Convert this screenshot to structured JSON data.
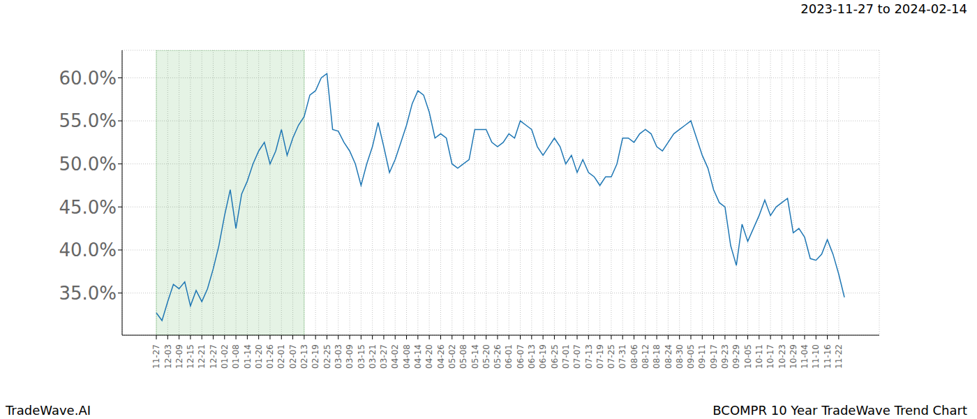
{
  "chart_data": {
    "type": "line",
    "title": "BCOMPR 10 Year TradeWave Trend Chart",
    "subtitle": "2023-11-27 to 2024-02-14",
    "source": "TradeWave.AI",
    "categories": [
      "11-27",
      null,
      "12-03",
      null,
      "12-09",
      null,
      "12-15",
      null,
      "12-21",
      null,
      "12-27",
      null,
      "01-02",
      null,
      "01-08",
      null,
      "01-14",
      null,
      "01-20",
      null,
      "01-26",
      null,
      "02-01",
      null,
      "02-07",
      null,
      "02-13",
      null,
      "02-19",
      null,
      "02-25",
      null,
      "03-03",
      null,
      "03-09",
      null,
      "03-15",
      null,
      "03-21",
      null,
      "03-27",
      null,
      "04-02",
      null,
      "04-08",
      null,
      "04-14",
      null,
      "04-20",
      null,
      "04-26",
      null,
      "05-02",
      null,
      "05-08",
      null,
      "05-14",
      null,
      "05-20",
      null,
      "05-26",
      null,
      "06-01",
      null,
      "06-07",
      null,
      "06-13",
      null,
      "06-19",
      null,
      "06-25",
      null,
      "07-01",
      null,
      "07-07",
      null,
      "07-13",
      null,
      "07-19",
      null,
      "07-25",
      null,
      "07-31",
      null,
      "08-06",
      null,
      "08-12",
      null,
      "08-18",
      null,
      "08-24",
      null,
      "08-30",
      null,
      "09-05",
      null,
      "09-11",
      null,
      "09-17",
      null,
      "09-23",
      null,
      "09-29",
      null,
      "10-05",
      null,
      "10-11",
      null,
      "10-17",
      null,
      "10-23",
      null,
      "10-29",
      null,
      "11-04",
      null,
      "11-10",
      null,
      "11-16",
      null,
      "11-22",
      null
    ],
    "values": [
      32.7,
      31.8,
      34,
      36,
      35.5,
      36.3,
      33.5,
      35.3,
      34,
      35.5,
      37.8,
      40.5,
      44,
      47,
      42.5,
      46.5,
      48,
      50,
      51.5,
      52.5,
      50,
      51.5,
      54,
      51,
      53,
      54.5,
      55.5,
      58,
      58.5,
      60,
      60.5,
      54,
      53.8,
      52.5,
      51.5,
      50,
      47.5,
      50,
      52,
      54.8,
      52,
      49,
      50.5,
      52.5,
      54.5,
      57,
      58.5,
      58,
      56,
      53,
      53.5,
      53,
      50,
      49.5,
      50,
      50.5,
      54,
      54,
      54,
      52.5,
      52,
      52.5,
      53.5,
      53,
      55,
      54.5,
      54,
      52,
      51,
      52,
      53,
      52,
      50,
      51,
      49,
      50.5,
      49,
      48.5,
      47.5,
      48.5,
      48.5,
      50,
      53,
      53,
      52.5,
      53.5,
      54,
      53.5,
      52,
      51.5,
      52.5,
      53.5,
      54,
      54.5,
      55,
      53,
      51,
      49.5,
      47,
      45.5,
      45,
      40.5,
      38.2,
      43,
      41,
      42.5,
      44,
      45.8,
      44,
      45,
      45.5,
      46,
      42,
      42.5,
      41.5,
      39,
      38.8,
      39.5,
      41.2,
      39.5,
      37.2,
      34.5
    ],
    "color": "#1f77b4",
    "highlight": [
      "11-27",
      "02-13"
    ],
    "ylim": [
      30.1,
      63.2
    ],
    "yticks": [
      {
        "value": 35,
        "label": "35.0%"
      },
      {
        "value": 40,
        "label": "40.0%"
      },
      {
        "value": 45,
        "label": "45.0%"
      },
      {
        "value": 50,
        "label": "50.0%"
      },
      {
        "value": 55,
        "label": "55.0%"
      },
      {
        "value": 60,
        "label": "60.0%"
      }
    ],
    "grid": true
  }
}
